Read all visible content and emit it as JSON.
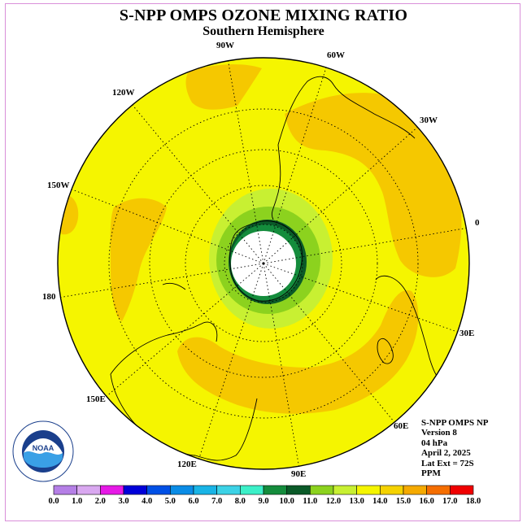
{
  "title": "S-NPP OMPS OZONE MIXING RATIO",
  "subtitle": "Southern Hemisphere",
  "longitudes": [
    {
      "label": "90W"
    },
    {
      "label": "60W"
    },
    {
      "label": "30W"
    },
    {
      "label": "0"
    },
    {
      "label": "30E"
    },
    {
      "label": "60E"
    },
    {
      "label": "90E"
    },
    {
      "label": "120E"
    },
    {
      "label": "150E"
    },
    {
      "label": "180"
    },
    {
      "label": "150W"
    },
    {
      "label": "120W"
    }
  ],
  "info": {
    "line1": "S-NPP OMPS NP",
    "line2": "Version 8",
    "line3": "04 hPa",
    "line4": "April 2, 2025",
    "line5": "Lat Ext = 72S",
    "line6": "PPM"
  },
  "colorbar": {
    "ticks": [
      "0.0",
      "1.0",
      "2.0",
      "3.0",
      "4.0",
      "5.0",
      "6.0",
      "7.0",
      "8.0",
      "9.0",
      "10.0",
      "11.0",
      "12.0",
      "13.0",
      "14.0",
      "15.0",
      "16.0",
      "17.0",
      "18.0"
    ],
    "colors": [
      "#b57fe6",
      "#d9a8f0",
      "#e619e6",
      "#0000d9",
      "#0050e6",
      "#0a8ce6",
      "#19b4e6",
      "#3cd2e6",
      "#3cf0c8",
      "#148c3c",
      "#0a5a28",
      "#8cd21e",
      "#c8f032",
      "#f5f500",
      "#f5d200",
      "#f5aa00",
      "#f56e00",
      "#f00000",
      "#8c5a3c"
    ]
  },
  "colors": {
    "background": "#f5f500",
    "band": "#f5c800",
    "pole_hole": "#ffffff",
    "frame": "#d98fd9"
  }
}
